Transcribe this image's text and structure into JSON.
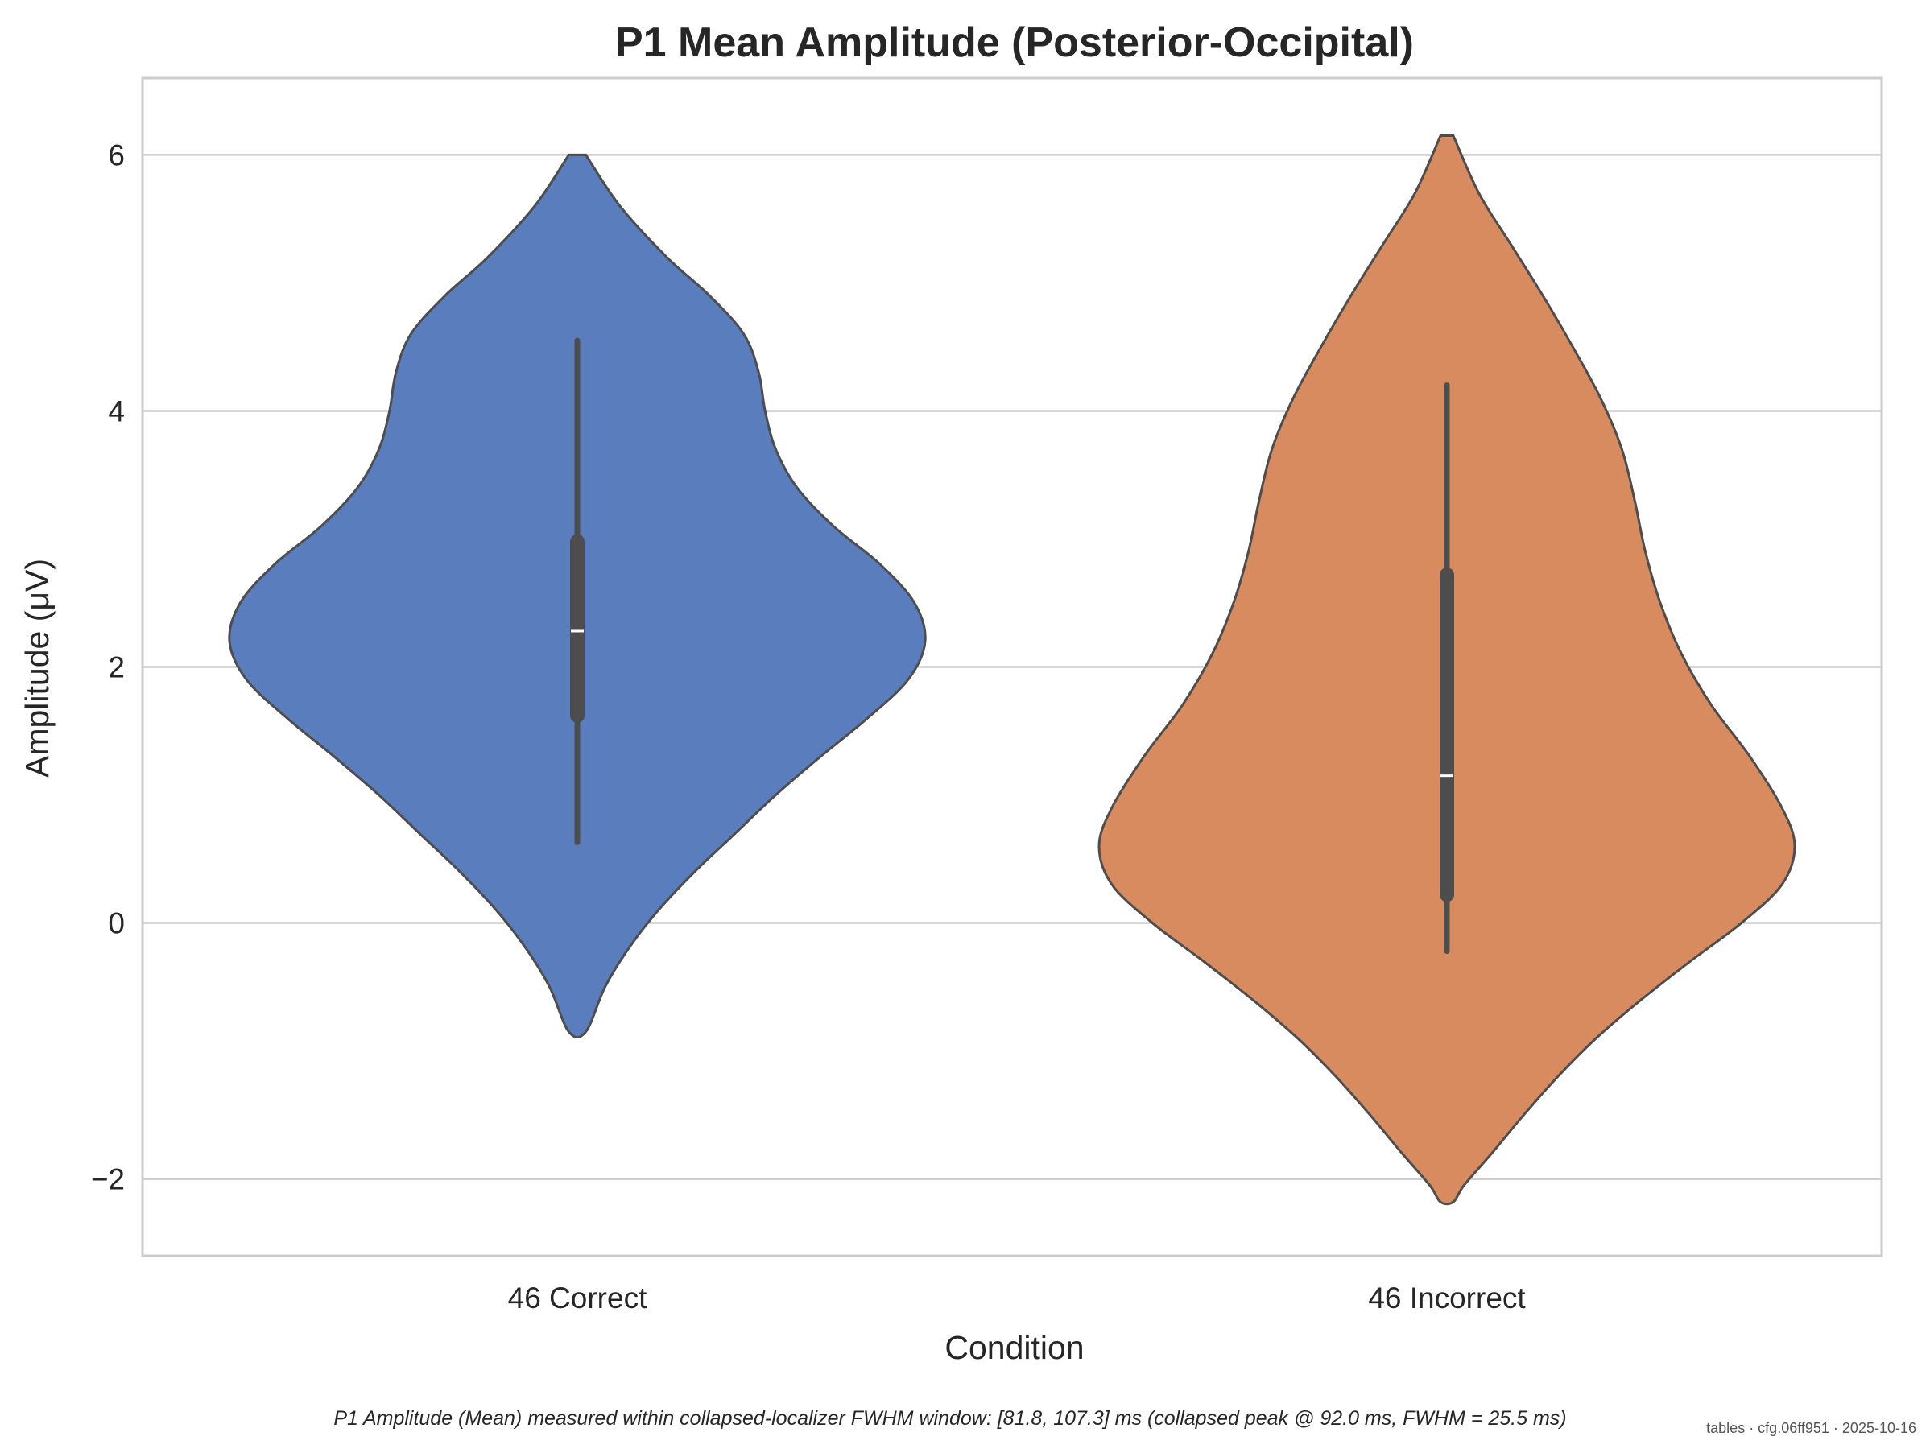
{
  "chart_data": {
    "type": "violin",
    "title": "P1 Mean Amplitude (Posterior-Occipital)",
    "xlabel": "Condition",
    "ylabel": "Amplitude (μV)",
    "ylim": [
      -2.6,
      6.6
    ],
    "yticks": [
      -2,
      0,
      2,
      4,
      6
    ],
    "ytick_labels": [
      "−2",
      "0",
      "2",
      "4",
      "6"
    ],
    "grid": true,
    "categories": [
      "46 Correct",
      "46 Incorrect"
    ],
    "series": [
      {
        "category": "46 Correct",
        "color": "#5a7dbd",
        "median": 2.28,
        "q1": 1.62,
        "q3": 2.98,
        "whisker_low": 0.63,
        "whisker_high": 4.55,
        "kde_min": -0.85,
        "kde_max": 6.0,
        "density_profile": [
          [
            6.0,
            0.04
          ],
          [
            5.6,
            0.2
          ],
          [
            5.2,
            0.42
          ],
          [
            4.9,
            0.62
          ],
          [
            4.6,
            0.78
          ],
          [
            4.3,
            0.85
          ],
          [
            4.0,
            0.88
          ],
          [
            3.7,
            0.93
          ],
          [
            3.4,
            1.03
          ],
          [
            3.1,
            1.2
          ],
          [
            2.8,
            1.42
          ],
          [
            2.5,
            1.58
          ],
          [
            2.2,
            1.63
          ],
          [
            1.9,
            1.55
          ],
          [
            1.6,
            1.36
          ],
          [
            1.3,
            1.14
          ],
          [
            1.0,
            0.93
          ],
          [
            0.7,
            0.74
          ],
          [
            0.4,
            0.55
          ],
          [
            0.1,
            0.38
          ],
          [
            -0.2,
            0.24
          ],
          [
            -0.5,
            0.13
          ],
          [
            -0.85,
            0.04
          ]
        ]
      },
      {
        "category": "46 Incorrect",
        "color": "#d98b60",
        "median": 1.15,
        "q1": 0.22,
        "q3": 2.72,
        "whisker_low": -0.22,
        "whisker_high": 4.2,
        "kde_min": -2.18,
        "kde_max": 6.15,
        "density_profile": [
          [
            6.15,
            0.03
          ],
          [
            5.7,
            0.15
          ],
          [
            5.3,
            0.3
          ],
          [
            4.9,
            0.45
          ],
          [
            4.5,
            0.59
          ],
          [
            4.1,
            0.72
          ],
          [
            3.7,
            0.82
          ],
          [
            3.3,
            0.88
          ],
          [
            2.9,
            0.93
          ],
          [
            2.5,
            1.0
          ],
          [
            2.1,
            1.1
          ],
          [
            1.7,
            1.24
          ],
          [
            1.3,
            1.42
          ],
          [
            0.9,
            1.57
          ],
          [
            0.6,
            1.63
          ],
          [
            0.3,
            1.57
          ],
          [
            0.0,
            1.38
          ],
          [
            -0.3,
            1.14
          ],
          [
            -0.6,
            0.91
          ],
          [
            -0.9,
            0.7
          ],
          [
            -1.2,
            0.52
          ],
          [
            -1.5,
            0.36
          ],
          [
            -1.8,
            0.21
          ],
          [
            -2.05,
            0.08
          ],
          [
            -2.18,
            0.03
          ]
        ]
      }
    ]
  },
  "caption": "P1 Amplitude (Mean) measured within collapsed-localizer FWHM window: [81.8, 107.3] ms (collapsed peak @ 92.0 ms, FWHM = 25.5 ms)",
  "stamp": "tables · cfg.06ff951 · 2025-10-16"
}
